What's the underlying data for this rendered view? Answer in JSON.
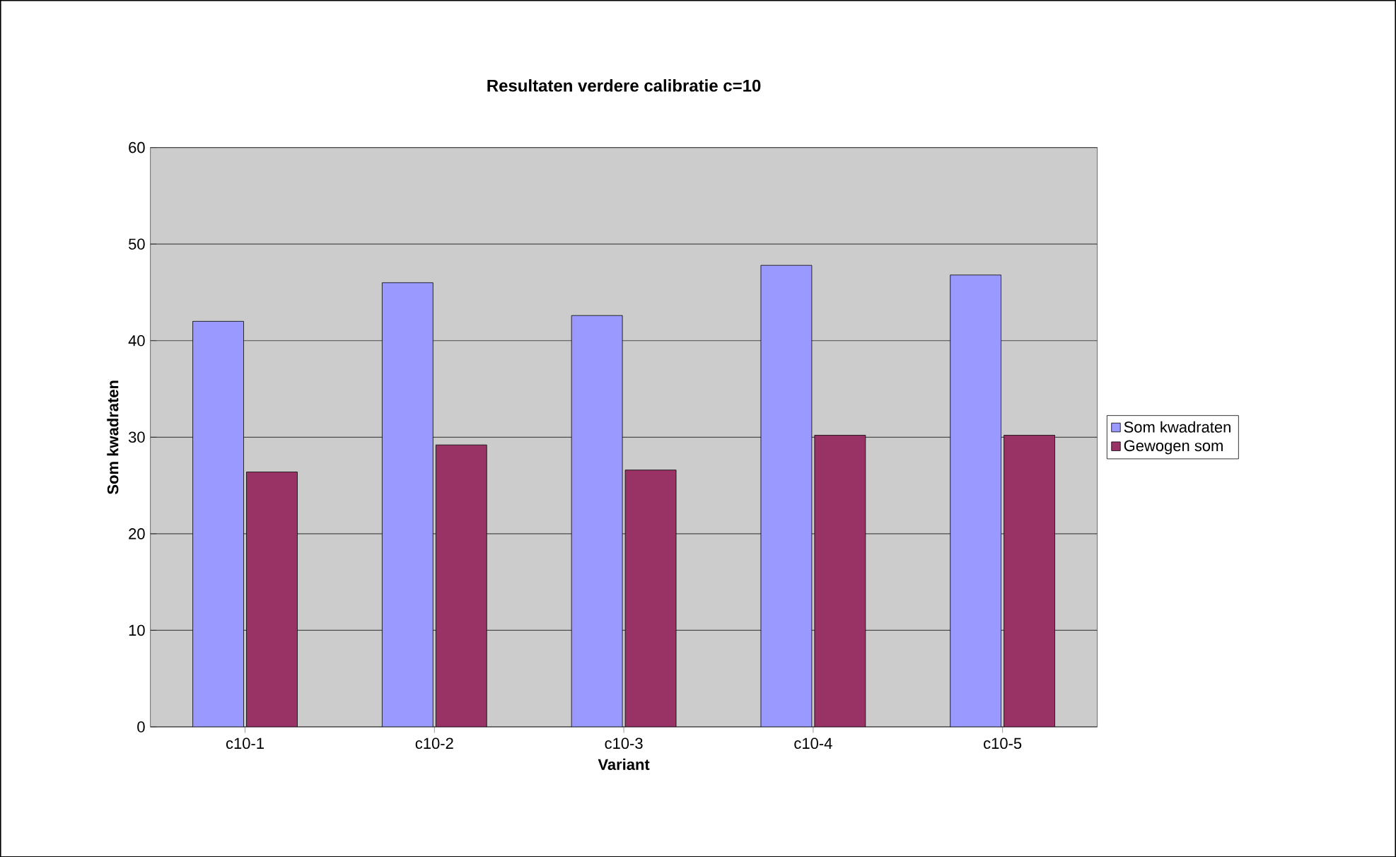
{
  "chart_data": {
    "type": "bar",
    "title": "Resultaten verdere calibratie c=10",
    "xlabel": "Variant",
    "ylabel": "Som kwadraten",
    "categories": [
      "c10-1",
      "c10-2",
      "c10-3",
      "c10-4",
      "c10-5"
    ],
    "series": [
      {
        "name": "Som kwadraten",
        "color": "#9999ff",
        "values": [
          42,
          46,
          42.6,
          47.8,
          46.8
        ]
      },
      {
        "name": "Gewogen som",
        "color": "#993366",
        "values": [
          26.4,
          29.2,
          26.6,
          30.2,
          30.2
        ]
      }
    ],
    "ylim": [
      0,
      60
    ],
    "yticks": [
      0,
      10,
      20,
      30,
      40,
      50,
      60
    ],
    "grid": "y",
    "legend": "right"
  }
}
